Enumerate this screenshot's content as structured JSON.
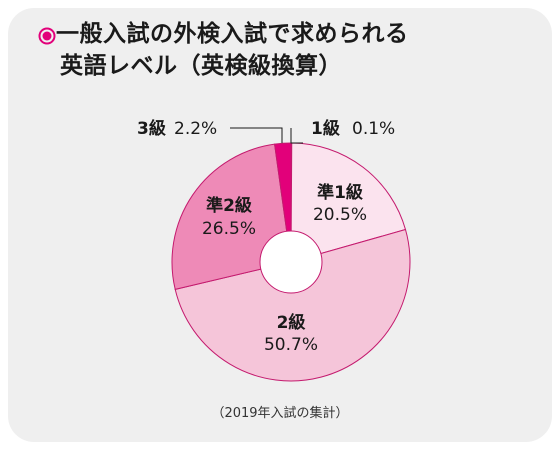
{
  "title": {
    "line1": "一般入試の外検入試で求められる",
    "line2": "英語レベル（英検級換算）"
  },
  "footnote": "（2019年入試の集計）",
  "colors": {
    "bullet": "#e2007a",
    "panel": "#efefef"
  },
  "chart_data": {
    "type": "pie",
    "donut": true,
    "title": "一般入試の外検入試で求められる英語レベル（英検級換算）",
    "slices": [
      {
        "label": "1級",
        "value": 0.1,
        "value_label": "0.1%",
        "color": "#e2007a"
      },
      {
        "label": "準1級",
        "value": 20.5,
        "value_label": "20.5%",
        "color": "#fbe3ee"
      },
      {
        "label": "2級",
        "value": 50.7,
        "value_label": "50.7%",
        "color": "#f5c5d9"
      },
      {
        "label": "準2級",
        "value": 26.5,
        "value_label": "26.5%",
        "color": "#ee8ab7"
      },
      {
        "label": "3級",
        "value": 2.2,
        "value_label": "2.2%",
        "color": "#e2007a"
      }
    ],
    "start": "top, clockwise",
    "legend": "none"
  }
}
